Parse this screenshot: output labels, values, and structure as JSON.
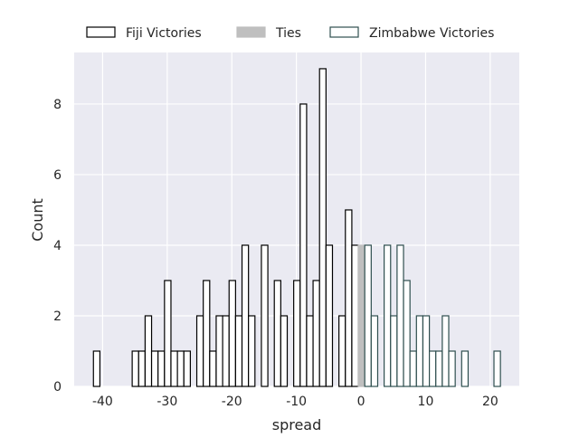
{
  "chart_data": {
    "type": "bar",
    "title": "",
    "xlabel": "spread",
    "ylabel": "Count",
    "xlim": [
      -44.4,
      24.5
    ],
    "ylim": [
      0,
      9.46
    ],
    "bin_width": 1,
    "bin_offset": -0.42,
    "xticks": [
      -40,
      -30,
      -20,
      -10,
      0,
      10,
      20
    ],
    "yticks": [
      0,
      2,
      4,
      6,
      8
    ],
    "grid": true,
    "legend_placement": "top-center-outside",
    "series": [
      {
        "name": "Fiji Victories",
        "fill": "#ffffff",
        "edge": "#000000",
        "bins": [
          -41,
          -35,
          -34,
          -33,
          -32,
          -31,
          -30,
          -29,
          -28,
          -27,
          -25,
          -24,
          -23,
          -22,
          -21,
          -20,
          -19,
          -18,
          -17,
          -15,
          -13,
          -12,
          -10,
          -9,
          -8,
          -7,
          -6,
          -5,
          -3,
          -2,
          -1
        ],
        "counts": [
          1,
          1,
          1,
          2,
          1,
          1,
          3,
          1,
          1,
          1,
          2,
          3,
          1,
          2,
          2,
          3,
          2,
          4,
          2,
          4,
          3,
          2,
          3,
          8,
          2,
          3,
          9,
          4,
          2,
          5,
          4
        ]
      },
      {
        "name": "Ties",
        "fill": "#bfbfbf",
        "edge": "#bfbfbf",
        "bins": [
          0
        ],
        "counts": [
          4
        ]
      },
      {
        "name": "Zimbabwe Victories",
        "fill": "#ffffff",
        "edge": "#2f4f4f",
        "bins": [
          1,
          2,
          4,
          5,
          6,
          7,
          8,
          9,
          10,
          11,
          12,
          13,
          14,
          16,
          21
        ],
        "counts": [
          4,
          2,
          4,
          2,
          4,
          3,
          1,
          2,
          2,
          1,
          1,
          2,
          1,
          1,
          1
        ]
      }
    ]
  }
}
